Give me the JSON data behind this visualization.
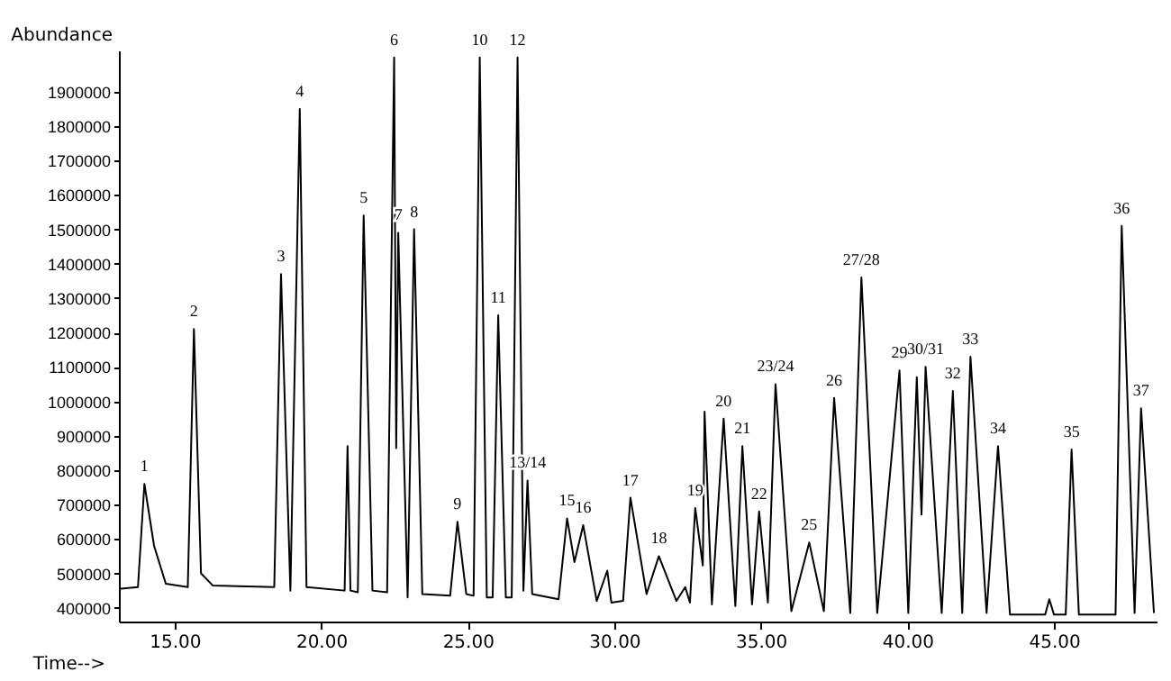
{
  "chart_data": {
    "type": "line",
    "xlabel": "Time-->",
    "ylabel": "Abundance",
    "xlim": [
      13.1,
      48.5
    ],
    "ylim": [
      360000,
      2020000
    ],
    "xticks": [
      {
        "value": 15,
        "label": "15.00"
      },
      {
        "value": 20,
        "label": "20.00"
      },
      {
        "value": 25,
        "label": "25.00"
      },
      {
        "value": 30,
        "label": "30.00"
      },
      {
        "value": 35,
        "label": "35.00"
      },
      {
        "value": 40,
        "label": "40.00"
      },
      {
        "value": 45,
        "label": "45.00"
      }
    ],
    "yticks": [
      400000,
      500000,
      600000,
      700000,
      800000,
      900000,
      1000000,
      1100000,
      1200000,
      1300000,
      1400000,
      1500000,
      1600000,
      1700000,
      1800000,
      1900000
    ],
    "grid": false,
    "x": [
      13.1,
      13.75,
      13.97,
      14.3,
      14.7,
      15.45,
      15.66,
      15.9,
      16.3,
      18.4,
      18.63,
      18.95,
      19.27,
      19.5,
      20.8,
      20.9,
      21.0,
      21.25,
      21.45,
      21.75,
      22.25,
      22.49,
      22.56,
      22.63,
      22.95,
      23.17,
      23.45,
      24.4,
      24.65,
      24.95,
      25.2,
      25.41,
      25.65,
      25.85,
      26.04,
      26.3,
      26.5,
      26.7,
      26.9,
      27.04,
      27.2,
      28.1,
      28.39,
      28.64,
      28.94,
      29.4,
      29.76,
      29.9,
      30.3,
      30.55,
      31.1,
      31.52,
      32.12,
      32.42,
      32.58,
      32.76,
      33.02,
      33.08,
      33.33,
      33.73,
      34.13,
      34.37,
      34.7,
      34.94,
      35.24,
      35.5,
      36.04,
      36.65,
      37.15,
      37.5,
      38.05,
      38.43,
      38.97,
      39.73,
      40.03,
      40.32,
      40.48,
      40.62,
      41.17,
      41.55,
      41.87,
      42.15,
      42.7,
      43.09,
      43.5,
      44.7,
      44.84,
      45.0,
      45.4,
      45.6,
      45.85,
      47.1,
      47.31,
      47.75,
      47.97,
      48.41
    ],
    "series": [
      {
        "color": "#000000",
        "values": [
          455000,
          460000,
          760000,
          580000,
          470000,
          460000,
          1210000,
          500000,
          465000,
          460000,
          1370000,
          450000,
          1850000,
          460000,
          450000,
          870000,
          450000,
          445000,
          1540000,
          450000,
          445000,
          2000000,
          864000,
          1490000,
          430000,
          1500000,
          440000,
          435000,
          650000,
          440000,
          435000,
          2000000,
          430000,
          430000,
          1250000,
          430000,
          430000,
          2000000,
          450000,
          770000,
          440000,
          425000,
          660000,
          533000,
          640000,
          420000,
          508000,
          415000,
          420000,
          720000,
          440000,
          550000,
          420000,
          460000,
          415000,
          690000,
          523000,
          970000,
          410000,
          950000,
          405000,
          870000,
          410000,
          680000,
          415000,
          1050000,
          390000,
          590000,
          390000,
          1010000,
          385000,
          1360000,
          385000,
          1090000,
          385000,
          1070000,
          671000,
          1100000,
          385000,
          1030000,
          385000,
          1130000,
          385000,
          870000,
          380000,
          380000,
          425000,
          380000,
          380000,
          860000,
          380000,
          380000,
          1510000,
          385000,
          980000,
          385000
        ]
      }
    ],
    "annotations": [
      {
        "text": "1",
        "x": 13.97,
        "y": 760000
      },
      {
        "text": "2",
        "x": 15.66,
        "y": 1210000
      },
      {
        "text": "3",
        "x": 18.63,
        "y": 1370000
      },
      {
        "text": "4",
        "x": 19.27,
        "y": 1850000
      },
      {
        "text": "5",
        "x": 21.45,
        "y": 1540000
      },
      {
        "text": "6",
        "x": 22.49,
        "y": 2000000
      },
      {
        "text": "7",
        "x": 22.63,
        "y": 1490000
      },
      {
        "text": "8",
        "x": 23.17,
        "y": 1500000
      },
      {
        "text": "9",
        "x": 24.65,
        "y": 650000
      },
      {
        "text": "10",
        "x": 25.41,
        "y": 2000000
      },
      {
        "text": "11",
        "x": 26.04,
        "y": 1250000
      },
      {
        "text": "12",
        "x": 26.7,
        "y": 2000000
      },
      {
        "text": "13/14",
        "x": 27.04,
        "y": 770000
      },
      {
        "text": "15",
        "x": 28.39,
        "y": 660000
      },
      {
        "text": "16",
        "x": 28.94,
        "y": 640000
      },
      {
        "text": "17",
        "x": 30.55,
        "y": 720000
      },
      {
        "text": "18",
        "x": 31.52,
        "y": 550000
      },
      {
        "text": "19",
        "x": 32.76,
        "y": 690000
      },
      {
        "text": "20",
        "x": 33.73,
        "y": 950000
      },
      {
        "text": "21",
        "x": 34.37,
        "y": 870000
      },
      {
        "text": "22",
        "x": 34.94,
        "y": 680000
      },
      {
        "text": "23/24",
        "x": 35.5,
        "y": 1050000
      },
      {
        "text": "25",
        "x": 36.65,
        "y": 590000
      },
      {
        "text": "26",
        "x": 37.5,
        "y": 1010000
      },
      {
        "text": "27/28",
        "x": 38.43,
        "y": 1360000
      },
      {
        "text": "29",
        "x": 39.73,
        "y": 1090000
      },
      {
        "text": "30/31",
        "x": 40.62,
        "y": 1100000
      },
      {
        "text": "32",
        "x": 41.55,
        "y": 1030000
      },
      {
        "text": "33",
        "x": 42.15,
        "y": 1130000
      },
      {
        "text": "34",
        "x": 43.09,
        "y": 870000
      },
      {
        "text": "35",
        "x": 45.6,
        "y": 860000
      },
      {
        "text": "36",
        "x": 47.31,
        "y": 1510000
      },
      {
        "text": "37",
        "x": 47.97,
        "y": 980000
      }
    ]
  }
}
